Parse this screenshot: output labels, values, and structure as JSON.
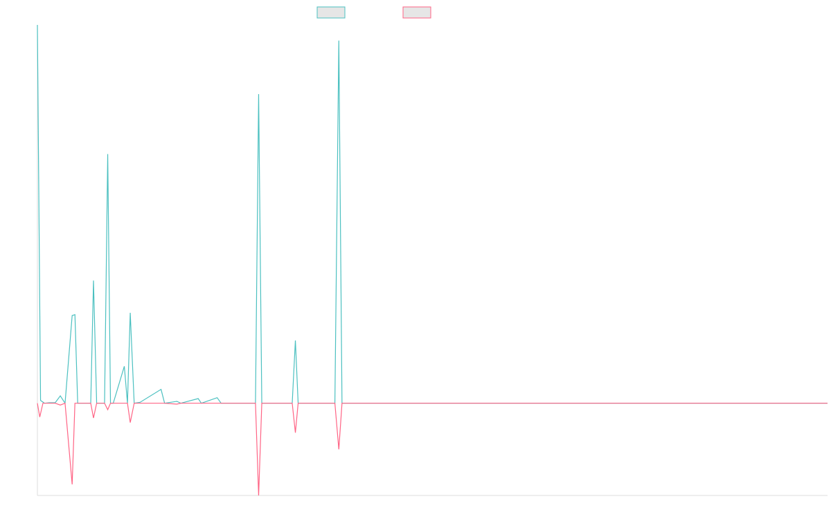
{
  "chart_data": {
    "type": "line",
    "title": "",
    "xlabel": "",
    "ylabel": "",
    "grid": false,
    "legend": {
      "placement": "top-center"
    },
    "ylim": [
      -10,
      41
    ],
    "xlim": [
      0,
      200
    ],
    "series": [
      {
        "key": "positive",
        "color": "#4bc0c0",
        "legend_fill": "#e6e6e6",
        "x": [
          0,
          0.8,
          1.8,
          3,
          4.5,
          5.8,
          7,
          8.8,
          9.5,
          10.2,
          13.5,
          14.2,
          15,
          16,
          17,
          17.8,
          18.5,
          19.2,
          22,
          22.8,
          23.5,
          24.5,
          26,
          31.3,
          32.2,
          35.3,
          36.3,
          40.7,
          41.5,
          45.5,
          46.5,
          55.2,
          56,
          56.8,
          64.5,
          65.3,
          66,
          75.3,
          76.3,
          77.1,
          200
        ],
        "y": [
          41,
          0.3,
          0,
          0.05,
          0.05,
          0.8,
          0,
          9.5,
          9.6,
          0,
          0,
          13.3,
          0,
          0,
          0,
          27,
          0,
          0,
          4,
          0,
          9.8,
          0,
          0.1,
          1.5,
          0,
          0.2,
          0,
          0.5,
          0,
          0.6,
          0,
          0,
          33.5,
          0,
          0,
          6.8,
          0,
          0,
          39.3,
          0,
          0
        ]
      },
      {
        "key": "negative",
        "color": "#ff6384",
        "legend_fill": "#e6e6e6",
        "x": [
          0,
          0.6,
          1.4,
          3,
          4.5,
          5.8,
          7,
          8.8,
          9.5,
          10.2,
          13.5,
          14.2,
          15,
          16,
          17,
          17.8,
          18.5,
          19.2,
          22,
          22.8,
          23.5,
          24.5,
          26,
          31.3,
          32.2,
          35.3,
          36.3,
          40.7,
          41.5,
          45.5,
          46.5,
          55.2,
          56,
          56.8,
          64.5,
          65.3,
          66,
          75.3,
          76.3,
          77.1,
          200
        ],
        "y": [
          0,
          -1.5,
          0,
          0,
          0,
          -0.2,
          0,
          -8.8,
          0,
          0,
          0,
          -1.6,
          0,
          0,
          0,
          -0.7,
          0,
          0,
          0,
          0,
          -2.1,
          0,
          0,
          0,
          0,
          -0.1,
          0,
          0,
          0,
          0,
          0,
          0,
          -10,
          0,
          0,
          -3.2,
          0,
          0,
          -5,
          0,
          0
        ]
      }
    ]
  }
}
